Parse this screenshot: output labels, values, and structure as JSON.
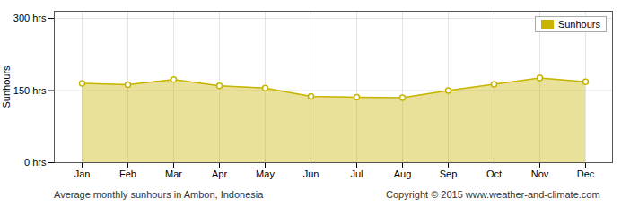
{
  "chart_data": {
    "type": "area",
    "ylabel": "Sunhours",
    "xlabel": "Average monthly sunhours in Ambon, Indonesia",
    "annotations": [
      "Copyright © 2015 www.weather-and-climate.com"
    ],
    "categories": [
      "Jan",
      "Feb",
      "Mar",
      "Apr",
      "May",
      "Jun",
      "Jul",
      "Aug",
      "Sep",
      "Oct",
      "Nov",
      "Dec"
    ],
    "series": [
      {
        "name": "Sunhours",
        "color": "#C8B400",
        "marker": "circle",
        "values": [
          165,
          162,
          173,
          160,
          155,
          138,
          136,
          135,
          150,
          163,
          176,
          168
        ]
      }
    ],
    "ylim": [
      0,
      315
    ],
    "yticks": [
      {
        "value": 0,
        "label": "0 hrs"
      },
      {
        "value": 150,
        "label": "150 hrs"
      },
      {
        "value": 300,
        "label": "300 hrs"
      }
    ],
    "grid": true,
    "legend": "upper right"
  }
}
